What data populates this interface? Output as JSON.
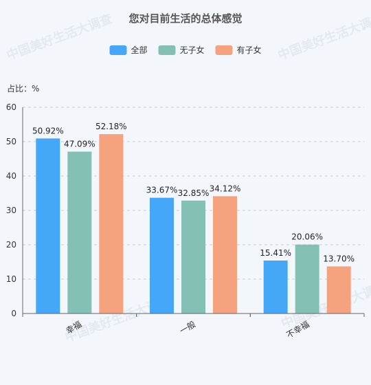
{
  "chart_data": {
    "type": "bar",
    "title": "您对目前生活的总体感觉",
    "ylabel": "占比：%",
    "categories": [
      "幸福",
      "一般",
      "不幸福"
    ],
    "series": [
      {
        "name": "全部",
        "color": "#44a7f7",
        "values": [
          50.92,
          33.67,
          15.41
        ],
        "labels": [
          "50.92%",
          "33.67%",
          "15.41%"
        ]
      },
      {
        "name": "无子女",
        "color": "#84c0b3",
        "values": [
          47.09,
          32.85,
          20.06
        ],
        "labels": [
          "47.09%",
          "32.85%",
          "20.06%"
        ]
      },
      {
        "name": "有子女",
        "color": "#f5a37f",
        "values": [
          52.18,
          34.12,
          13.7
        ],
        "labels": [
          "52.18%",
          "34.12%",
          "13.70%"
        ]
      }
    ],
    "ylim": [
      0,
      60
    ],
    "yticks": [
      0,
      10,
      20,
      30,
      40,
      50,
      60
    ],
    "grid": true,
    "legend_position": "top-center"
  },
  "watermarks": [
    "中国美好生活大调查",
    "中国美好生活大调查",
    "中国美好生活大调查",
    "中国美好生活大调查"
  ]
}
